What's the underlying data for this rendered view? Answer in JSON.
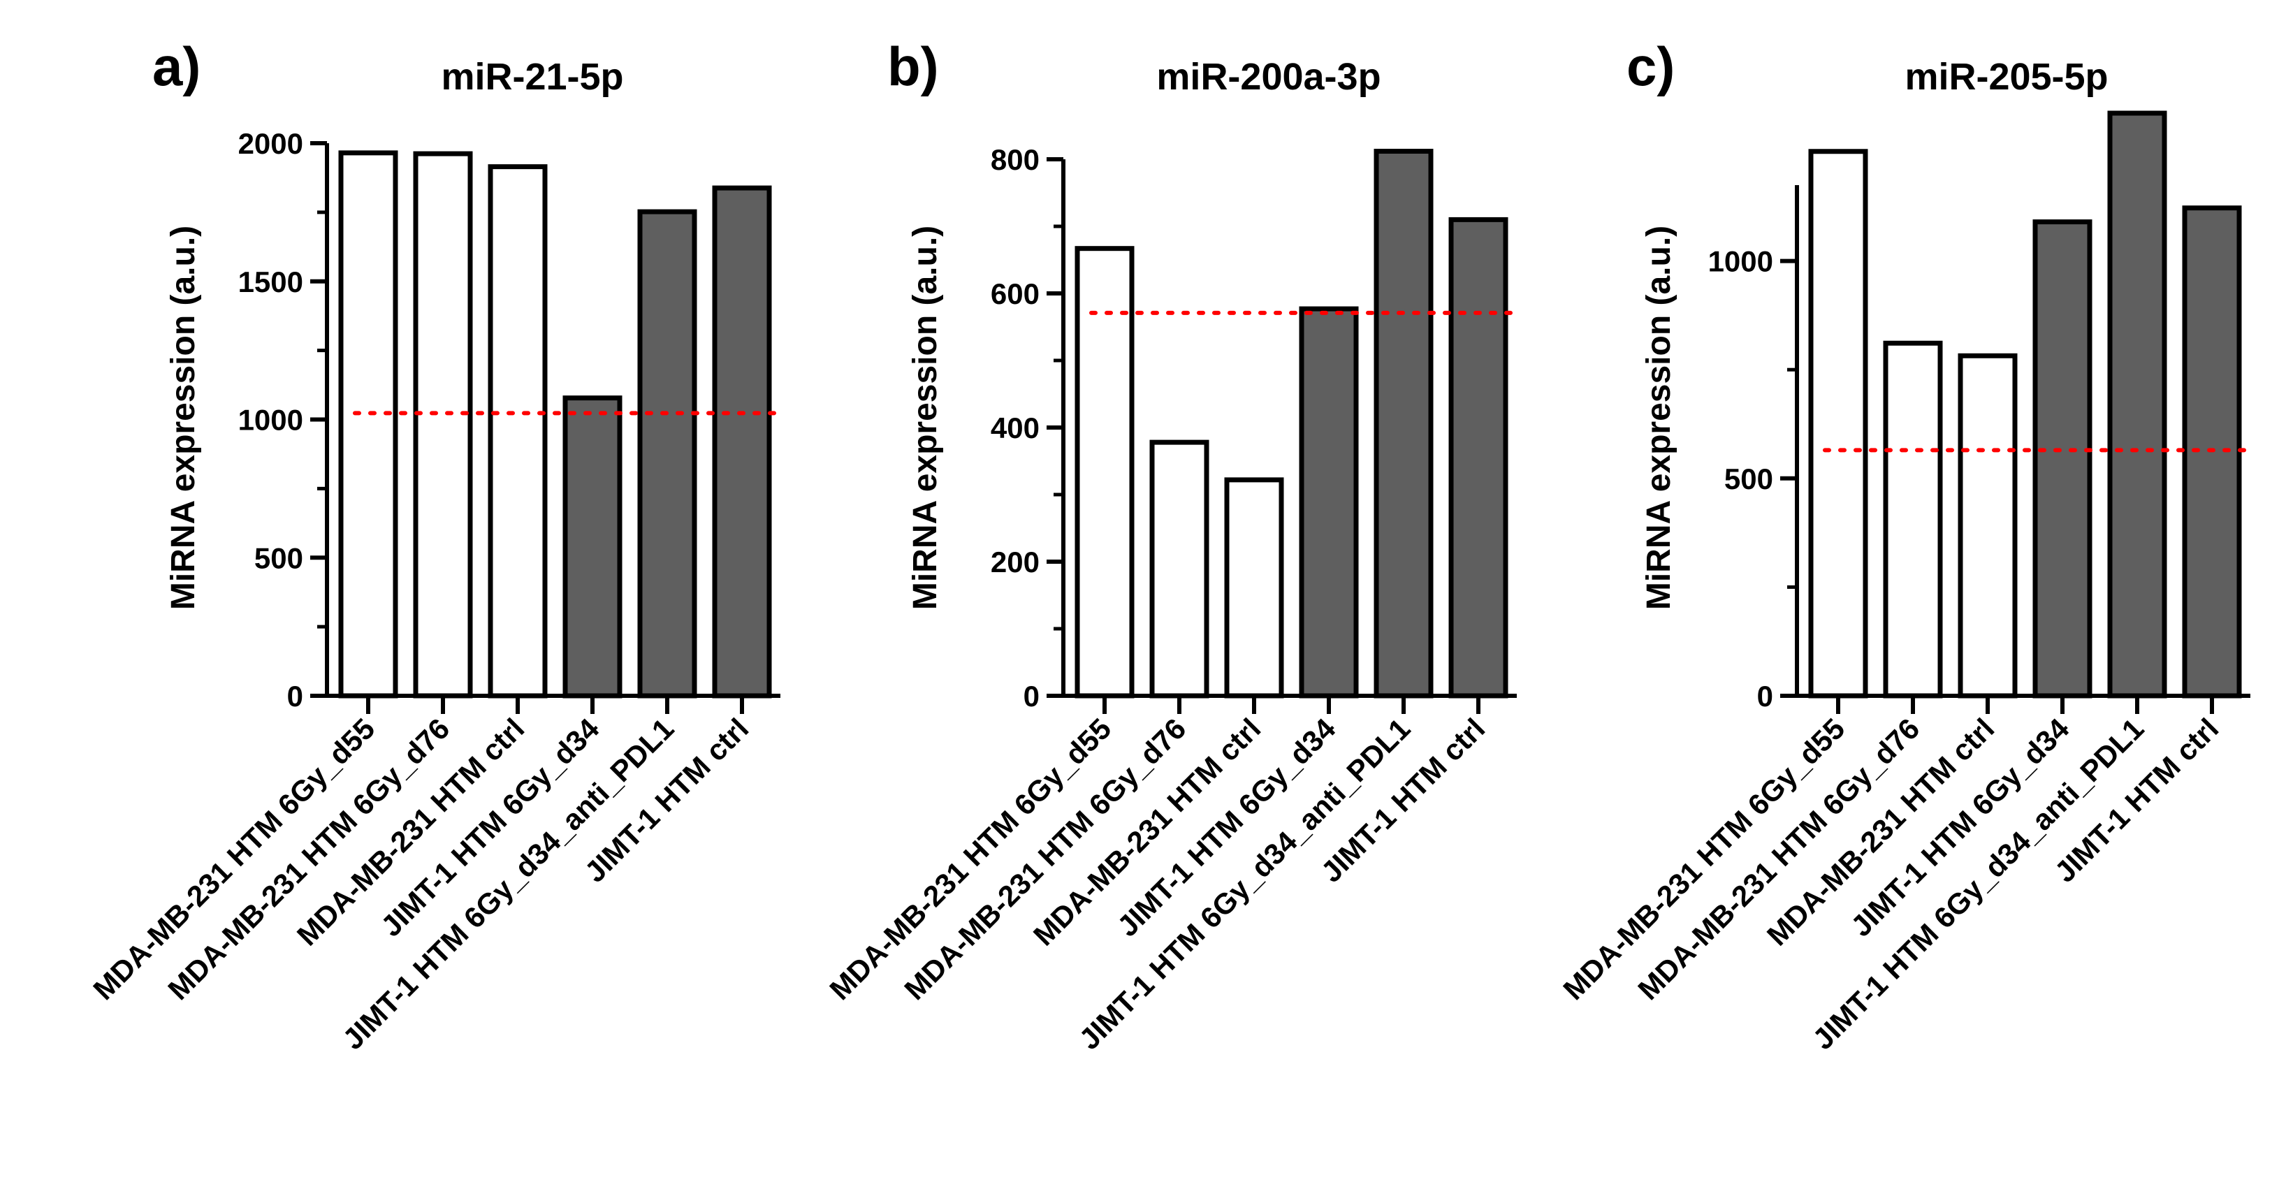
{
  "figure": {
    "panels": [
      "a)",
      "b)",
      "c)"
    ]
  },
  "colors": {
    "bar_open_fill": "#ffffff",
    "bar_filled": "#5f5f5f",
    "bar_stroke": "#000000",
    "reference_line": "#ff0000"
  },
  "chart_data": [
    {
      "type": "bar",
      "panel": "a)",
      "title": "miR-21-5p",
      "ylabel": "MiRNA expression (a.u.)",
      "xlabel": "",
      "ylim": [
        0,
        2000
      ],
      "yticks": [
        0,
        500,
        1000,
        1500,
        2000
      ],
      "categories": [
        "MDA-MB-231 HTM 6Gy_d55",
        "MDA-MB-231 HTM 6Gy_d76",
        "MDA-MB-231 HTM ctrl",
        "JIMT-1 HTM 6Gy_d34",
        "JIMT-1 HTM 6Gy_d34_anti_PDL1",
        "JIMT-1 HTM ctrl"
      ],
      "values": [
        1965,
        1962,
        1915,
        1078,
        1752,
        1838
      ],
      "bar_style": [
        "open",
        "open",
        "open",
        "filled",
        "filled",
        "filled"
      ],
      "reference_line": 1023,
      "reference_line_style": "dotted red",
      "grid": false,
      "legend": "none"
    },
    {
      "type": "bar",
      "panel": "b)",
      "title": "miR-200a-3p",
      "ylabel": "MiRNA expression (a.u.)",
      "xlabel": "",
      "ylim": [
        0,
        800
      ],
      "yticks": [
        0,
        200,
        400,
        600,
        800
      ],
      "categories": [
        "MDA-MB-231 HTM 6Gy_d55",
        "MDA-MB-231 HTM 6Gy_d76",
        "MDA-MB-231 HTM ctrl",
        "JIMT-1 HTM 6Gy_d34",
        "JIMT-1 HTM 6Gy_d34_anti_PDL1",
        "JIMT-1 HTM ctrl"
      ],
      "values": [
        667,
        378,
        322,
        577,
        812,
        710
      ],
      "bar_style": [
        "open",
        "open",
        "open",
        "filled",
        "filled",
        "filled"
      ],
      "reference_line": 571,
      "reference_line_style": "dotted red",
      "grid": false,
      "legend": "none"
    },
    {
      "type": "bar",
      "panel": "c)",
      "title": "miR-205-5p",
      "ylabel": "MiRNA expression (a.u.)",
      "xlabel": "",
      "ylim": [
        0,
        1250
      ],
      "yticks": [
        0,
        500,
        1000
      ],
      "categories": [
        "MDA-MB-231 HTM 6Gy_d55",
        "MDA-MB-231 HTM 6Gy_d76",
        "MDA-MB-231 HTM ctrl",
        "JIMT-1 HTM 6Gy_d34",
        "JIMT-1 HTM 6Gy_d34_anti_PDL1",
        "JIMT-1 HTM ctrl"
      ],
      "values": [
        1252,
        811,
        782,
        1090,
        1340,
        1122
      ],
      "bar_style": [
        "open",
        "open",
        "open",
        "filled",
        "filled",
        "filled"
      ],
      "reference_line": 565,
      "reference_line_style": "dotted red",
      "grid": false,
      "legend": "none"
    }
  ]
}
